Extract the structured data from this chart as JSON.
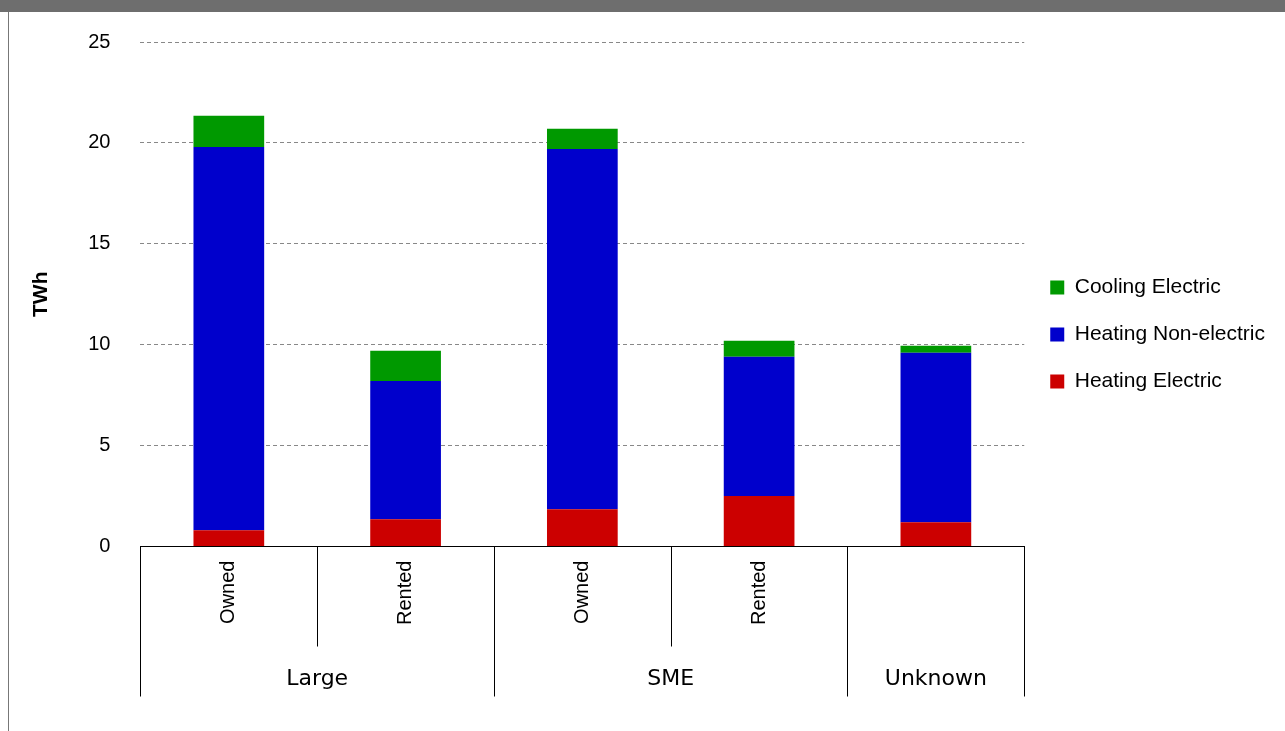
{
  "chart_data": {
    "type": "bar",
    "stacked": true,
    "ylabel": "TWh",
    "categories": [
      "Owned",
      "Rented",
      "Owned",
      "Rented",
      null
    ],
    "annotations": [
      "Large",
      "SME",
      "Unknown"
    ],
    "series": [
      {
        "name": "Heating Electric",
        "color": "#cc0000",
        "values": [
          0.8,
          1.35,
          1.85,
          2.5,
          1.2
        ]
      },
      {
        "name": "Heating Non-electric",
        "color": "#0000cc",
        "values": [
          19.0,
          6.85,
          17.85,
          6.9,
          8.4
        ]
      },
      {
        "name": "Cooling Electric",
        "color": "#009900",
        "values": [
          1.55,
          1.5,
          1.0,
          0.8,
          0.35
        ]
      }
    ],
    "ylim": [
      0,
      25
    ],
    "yticks": [
      0,
      5,
      10,
      15,
      20,
      25
    ],
    "grid": "y",
    "legend": "right"
  }
}
